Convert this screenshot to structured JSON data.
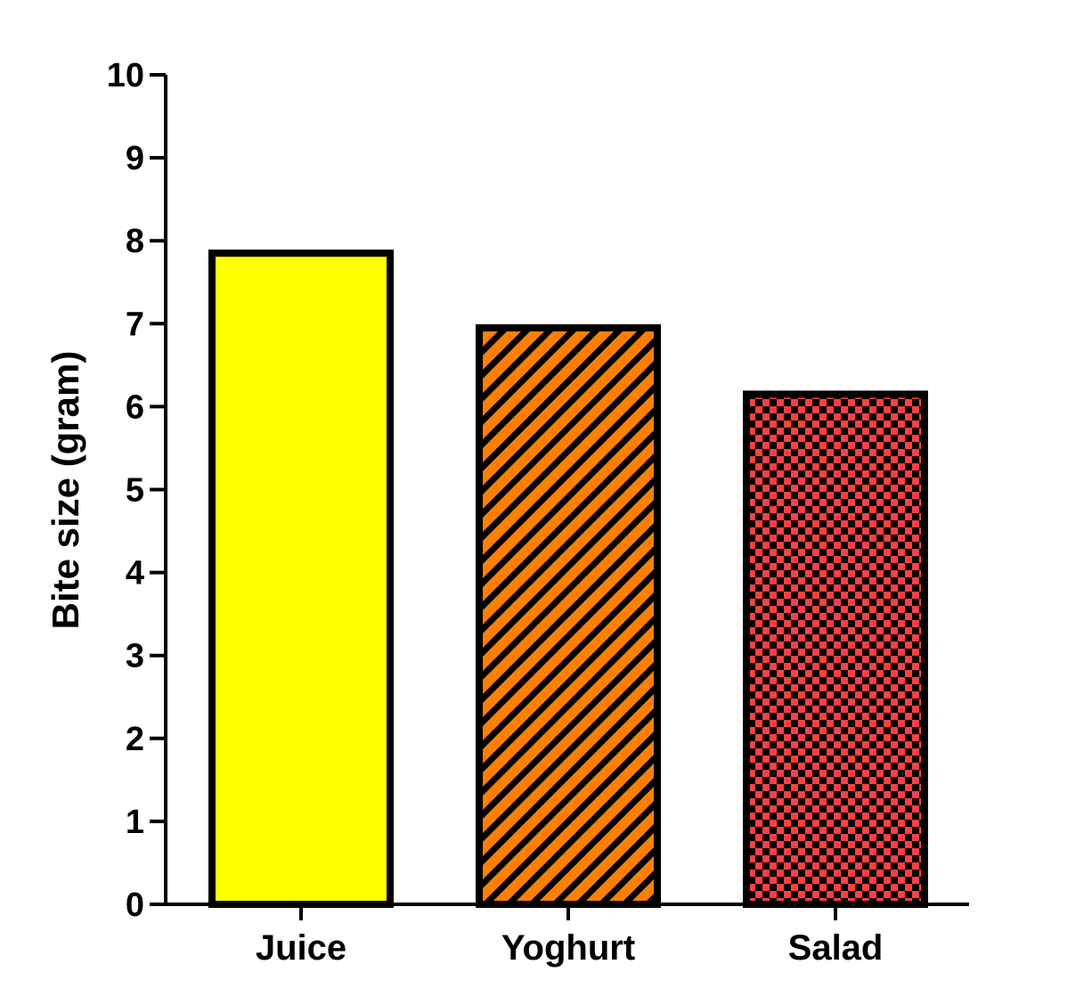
{
  "chart_data": {
    "type": "bar",
    "categories": [
      "Juice",
      "Yoghurt",
      "Salad"
    ],
    "values": [
      7.85,
      6.95,
      6.15
    ],
    "title": "",
    "xlabel": "",
    "ylabel": "Bite size (gram)",
    "ylim": [
      0,
      10
    ],
    "yticks": [
      "0",
      "1",
      "2",
      "3",
      "4",
      "5",
      "6",
      "7",
      "8",
      "9",
      "10"
    ],
    "grid": false,
    "legend": "none",
    "bar_styles": [
      {
        "fill": "#ffff00",
        "pattern": "solid"
      },
      {
        "fill": "#ff8000",
        "pattern": "diagonal-stripes",
        "pattern_color": "#000000"
      },
      {
        "fill": "#ff4040",
        "pattern": "checkerboard",
        "pattern_color": "#000000"
      }
    ]
  }
}
